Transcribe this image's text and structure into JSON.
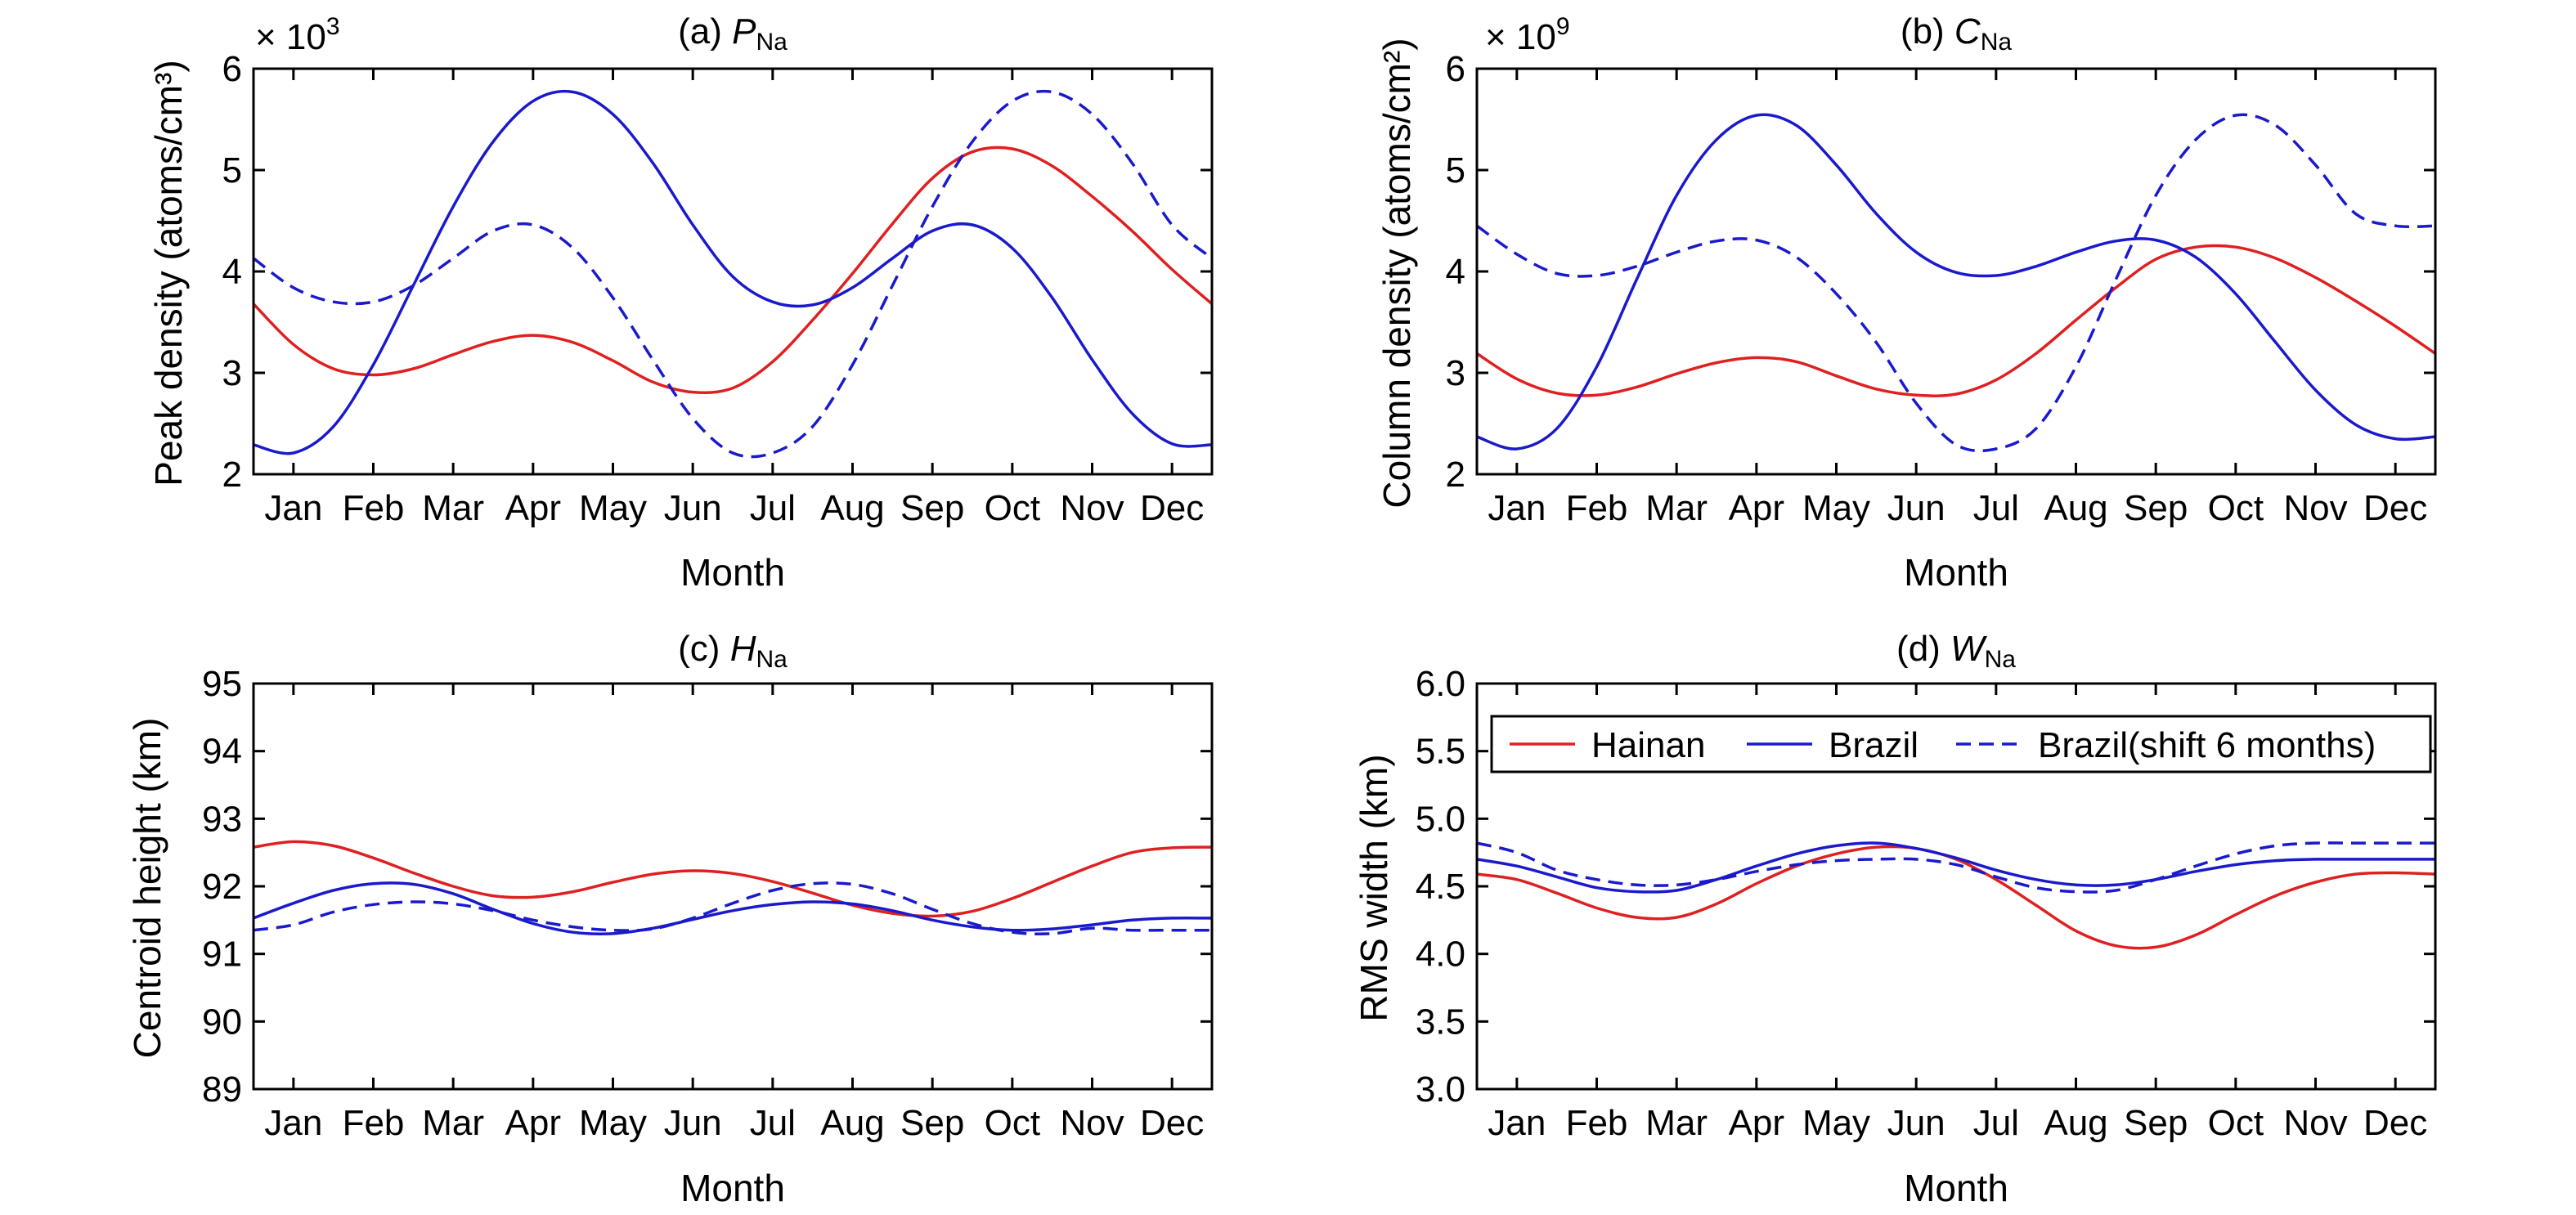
{
  "chart_data": [
    {
      "type": "line",
      "id": "a",
      "title": {
        "prefix": "(a) ",
        "symbol": "P",
        "sub": "Na"
      },
      "xlabel": "Month",
      "ylabel": "Peak density (atoms/cm³)",
      "y_multiplier": {
        "base": "× 10",
        "exp": "3"
      },
      "categories": [
        "Jan",
        "Feb",
        "Mar",
        "Apr",
        "May",
        "Jun",
        "Jul",
        "Aug",
        "Sep",
        "Oct",
        "Nov",
        "Dec"
      ],
      "ylim": [
        2,
        6
      ],
      "yticks": [
        2,
        3,
        4,
        5,
        6
      ],
      "ytick_labels": [
        "2",
        "3",
        "4",
        "5",
        "6"
      ],
      "grid": false,
      "series": [
        {
          "name": "Hainan",
          "color": "#e02020",
          "dashed": false,
          "x": [
            0.5,
            1,
            1.5,
            2,
            2.5,
            3,
            3.5,
            4,
            4.5,
            5,
            5.5,
            6,
            6.5,
            7,
            7.5,
            8,
            8.5,
            9,
            9.5,
            10,
            10.5,
            11,
            11.5,
            12,
            12.5
          ],
          "y": [
            3.68,
            3.28,
            3.04,
            2.98,
            3.04,
            3.18,
            3.31,
            3.37,
            3.3,
            3.12,
            2.91,
            2.81,
            2.85,
            3.11,
            3.52,
            3.98,
            4.47,
            4.92,
            5.18,
            5.21,
            5.04,
            4.74,
            4.4,
            4.02,
            3.68
          ]
        },
        {
          "name": "Brazil",
          "color": "#1a1acc",
          "dashed": false,
          "x": [
            0.5,
            1,
            1.5,
            2,
            2.5,
            3,
            3.5,
            4,
            4.5,
            5,
            5.5,
            6,
            6.5,
            7,
            7.5,
            8,
            8.5,
            9,
            9.5,
            10,
            10.5,
            11,
            11.5,
            12,
            12.5
          ],
          "y": [
            2.29,
            2.21,
            2.47,
            3.08,
            3.86,
            4.64,
            5.28,
            5.68,
            5.77,
            5.55,
            5.07,
            4.46,
            3.95,
            3.7,
            3.67,
            3.84,
            4.13,
            4.4,
            4.46,
            4.23,
            3.74,
            3.13,
            2.6,
            2.3,
            2.29
          ]
        },
        {
          "name": "Brazil(shift 6 months)",
          "color": "#1a1acc",
          "dashed": true,
          "x": [
            0.5,
            1,
            1.5,
            2,
            2.5,
            3,
            3.5,
            4,
            4.5,
            5,
            5.5,
            6,
            6.5,
            7,
            7.5,
            8,
            8.5,
            9,
            9.5,
            10,
            10.5,
            11,
            11.5,
            12,
            12.5
          ],
          "y": [
            4.13,
            3.84,
            3.7,
            3.7,
            3.86,
            4.13,
            4.4,
            4.46,
            4.23,
            3.74,
            3.13,
            2.55,
            2.21,
            2.21,
            2.47,
            3.08,
            3.86,
            4.64,
            5.28,
            5.68,
            5.77,
            5.55,
            5.07,
            4.46,
            4.13
          ]
        }
      ]
    },
    {
      "type": "line",
      "id": "b",
      "title": {
        "prefix": "(b) ",
        "symbol": "C",
        "sub": "Na"
      },
      "xlabel": "Month",
      "ylabel": "Column density (atoms/cm²)",
      "y_multiplier": {
        "base": "× 10",
        "exp": "9"
      },
      "categories": [
        "Jan",
        "Feb",
        "Mar",
        "Apr",
        "May",
        "Jun",
        "Jul",
        "Aug",
        "Sep",
        "Oct",
        "Nov",
        "Dec"
      ],
      "ylim": [
        2,
        6
      ],
      "yticks": [
        2,
        3,
        4,
        5,
        6
      ],
      "ytick_labels": [
        "2",
        "3",
        "4",
        "5",
        "6"
      ],
      "grid": false,
      "series": [
        {
          "name": "Hainan",
          "color": "#e02020",
          "dashed": false,
          "x": [
            0.5,
            1,
            1.5,
            2,
            2.5,
            3,
            3.5,
            4,
            4.5,
            5,
            5.5,
            6,
            6.5,
            7,
            7.5,
            8,
            8.5,
            9,
            9.5,
            10,
            10.5,
            11,
            11.5,
            12,
            12.5
          ],
          "y": [
            3.19,
            2.94,
            2.8,
            2.78,
            2.86,
            2.99,
            3.1,
            3.15,
            3.11,
            2.97,
            2.84,
            2.78,
            2.79,
            2.93,
            3.19,
            3.52,
            3.84,
            4.12,
            4.24,
            4.24,
            4.13,
            3.94,
            3.71,
            3.46,
            3.19
          ]
        },
        {
          "name": "Brazil",
          "color": "#1a1acc",
          "dashed": false,
          "x": [
            0.5,
            1,
            1.5,
            2,
            2.5,
            3,
            3.5,
            4,
            4.5,
            5,
            5.5,
            6,
            6.5,
            7,
            7.5,
            8,
            8.5,
            9,
            9.5,
            10,
            10.5,
            11,
            11.5,
            12,
            12.5
          ],
          "y": [
            2.37,
            2.25,
            2.45,
            3.06,
            3.92,
            4.75,
            5.3,
            5.54,
            5.44,
            5.05,
            4.57,
            4.19,
            3.99,
            3.96,
            4.05,
            4.19,
            4.3,
            4.31,
            4.14,
            3.78,
            3.3,
            2.83,
            2.49,
            2.35,
            2.37
          ]
        },
        {
          "name": "Brazil(shift 6 months)",
          "color": "#1a1acc",
          "dashed": true,
          "x": [
            0.5,
            1,
            1.5,
            2,
            2.5,
            3,
            3.5,
            4,
            4.5,
            5,
            5.5,
            6,
            6.5,
            7,
            7.5,
            8,
            8.5,
            9,
            9.5,
            10,
            10.5,
            11,
            11.5,
            12,
            12.5
          ],
          "y": [
            4.45,
            4.17,
            3.98,
            3.96,
            4.05,
            4.19,
            4.3,
            4.31,
            4.14,
            3.78,
            3.3,
            2.7,
            2.29,
            2.25,
            2.45,
            3.06,
            3.92,
            4.75,
            5.3,
            5.54,
            5.44,
            5.05,
            4.57,
            4.45,
            4.45
          ]
        }
      ]
    },
    {
      "type": "line",
      "id": "c",
      "title": {
        "prefix": "(c) ",
        "symbol": "H",
        "sub": "Na"
      },
      "xlabel": "Month",
      "ylabel": "Centroid height (km)",
      "categories": [
        "Jan",
        "Feb",
        "Mar",
        "Apr",
        "May",
        "Jun",
        "Jul",
        "Aug",
        "Sep",
        "Oct",
        "Nov",
        "Dec"
      ],
      "ylim": [
        89,
        95
      ],
      "yticks": [
        89,
        90,
        91,
        92,
        93,
        94,
        95
      ],
      "ytick_labels": [
        "89",
        "90",
        "91",
        "92",
        "93",
        "94",
        "95"
      ],
      "grid": false,
      "series": [
        {
          "name": "Hainan",
          "color": "#e02020",
          "dashed": false,
          "x": [
            0.5,
            1,
            1.5,
            2,
            2.5,
            3,
            3.5,
            4,
            4.5,
            5,
            5.5,
            6,
            6.5,
            7,
            7.5,
            8,
            8.5,
            9,
            9.5,
            10,
            10.5,
            11,
            11.5,
            12,
            12.5
          ],
          "y": [
            92.58,
            92.66,
            92.6,
            92.42,
            92.2,
            92.0,
            91.86,
            91.84,
            91.92,
            92.06,
            92.18,
            92.23,
            92.19,
            92.07,
            91.9,
            91.72,
            91.6,
            91.56,
            91.63,
            91.82,
            92.06,
            92.3,
            92.5,
            92.57,
            92.58
          ]
        },
        {
          "name": "Brazil",
          "color": "#1a1acc",
          "dashed": false,
          "x": [
            0.5,
            1,
            1.5,
            2,
            2.5,
            3,
            3.5,
            4,
            4.5,
            5,
            5.5,
            6,
            6.5,
            7,
            7.5,
            8,
            8.5,
            9,
            9.5,
            10,
            10.5,
            11,
            11.5,
            12,
            12.5
          ],
          "y": [
            91.53,
            91.75,
            91.94,
            92.04,
            92.03,
            91.89,
            91.66,
            91.45,
            91.32,
            91.3,
            91.38,
            91.51,
            91.64,
            91.73,
            91.77,
            91.74,
            91.64,
            91.5,
            91.4,
            91.35,
            91.37,
            91.43,
            91.5,
            91.53,
            91.53
          ]
        },
        {
          "name": "Brazil(shift 6 months)",
          "color": "#1a1acc",
          "dashed": true,
          "x": [
            0.5,
            1,
            1.5,
            2,
            2.5,
            3,
            3.5,
            4,
            4.5,
            5,
            5.5,
            6,
            6.5,
            7,
            7.5,
            8,
            8.5,
            9,
            9.5,
            10,
            10.5,
            11,
            11.5,
            12,
            12.5
          ],
          "y": [
            91.35,
            91.43,
            91.62,
            91.73,
            91.77,
            91.74,
            91.64,
            91.5,
            91.4,
            91.35,
            91.37,
            91.53,
            91.75,
            91.94,
            92.04,
            92.03,
            91.89,
            91.66,
            91.45,
            91.32,
            91.3,
            91.38,
            91.35,
            91.35,
            91.35
          ]
        }
      ]
    },
    {
      "type": "line",
      "id": "d",
      "title": {
        "prefix": "(d) ",
        "symbol": "W",
        "sub": "Na"
      },
      "xlabel": "Month",
      "ylabel": "RMS width (km)",
      "categories": [
        "Jan",
        "Feb",
        "Mar",
        "Apr",
        "May",
        "Jun",
        "Jul",
        "Aug",
        "Sep",
        "Oct",
        "Nov",
        "Dec"
      ],
      "ylim": [
        3.0,
        6.0
      ],
      "yticks": [
        3.0,
        3.5,
        4.0,
        4.5,
        5.0,
        5.5,
        6.0
      ],
      "ytick_labels": [
        "3.0",
        "3.5",
        "4.0",
        "4.5",
        "5.0",
        "5.5",
        "6.0"
      ],
      "grid": false,
      "legend": {
        "position": "top",
        "entries": [
          "Hainan",
          "Brazil",
          "Brazil(shift 6 months)"
        ]
      },
      "series": [
        {
          "name": "Hainan",
          "color": "#e02020",
          "dashed": false,
          "x": [
            0.5,
            1,
            1.5,
            2,
            2.5,
            3,
            3.5,
            4,
            4.5,
            5,
            5.5,
            6,
            6.5,
            7,
            7.5,
            8,
            8.5,
            9,
            9.5,
            10,
            10.5,
            11,
            11.5,
            12,
            12.5
          ],
          "y": [
            4.59,
            4.55,
            4.45,
            4.34,
            4.27,
            4.27,
            4.37,
            4.52,
            4.65,
            4.74,
            4.79,
            4.78,
            4.7,
            4.55,
            4.36,
            4.17,
            4.06,
            4.05,
            4.14,
            4.29,
            4.43,
            4.53,
            4.59,
            4.6,
            4.59
          ]
        },
        {
          "name": "Brazil",
          "color": "#1a1acc",
          "dashed": false,
          "x": [
            0.5,
            1,
            1.5,
            2,
            2.5,
            3,
            3.5,
            4,
            4.5,
            5,
            5.5,
            6,
            6.5,
            7,
            7.5,
            8,
            8.5,
            9,
            9.5,
            10,
            10.5,
            11,
            11.5,
            12,
            12.5
          ],
          "y": [
            4.7,
            4.65,
            4.57,
            4.49,
            4.46,
            4.47,
            4.55,
            4.65,
            4.74,
            4.8,
            4.82,
            4.78,
            4.71,
            4.62,
            4.55,
            4.51,
            4.51,
            4.55,
            4.61,
            4.66,
            4.69,
            4.7,
            4.7,
            4.7,
            4.7
          ]
        },
        {
          "name": "Brazil(shift 6 months)",
          "color": "#1a1acc",
          "dashed": true,
          "x": [
            0.5,
            1,
            1.5,
            2,
            2.5,
            3,
            3.5,
            4,
            4.5,
            5,
            5.5,
            6,
            6.5,
            7,
            7.5,
            8,
            8.5,
            9,
            9.5,
            10,
            10.5,
            11,
            11.5,
            12,
            12.5
          ],
          "y": [
            4.82,
            4.75,
            4.62,
            4.55,
            4.51,
            4.51,
            4.55,
            4.61,
            4.66,
            4.69,
            4.7,
            4.7,
            4.66,
            4.57,
            4.49,
            4.46,
            4.47,
            4.55,
            4.65,
            4.74,
            4.8,
            4.82,
            4.82,
            4.82,
            4.82
          ]
        }
      ]
    }
  ]
}
